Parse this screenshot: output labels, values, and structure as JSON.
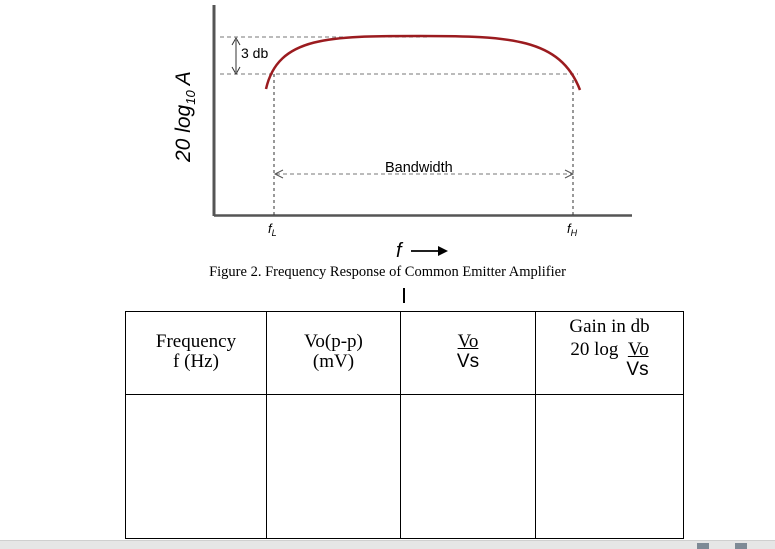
{
  "figure": {
    "ylabel_main": "20 log",
    "ylabel_sub": "10",
    "ylabel_tail": " A",
    "db_label": "3 db",
    "bandwidth_label": "Bandwidth",
    "fl_main": "f",
    "fl_sub": "L",
    "fh_main": "f",
    "fh_sub": "H",
    "xaxis_label": "f",
    "curve_color": "#9b1b1f"
  },
  "caption": "Figure 2. Frequency Response of Common Emitter Amplifier",
  "table": {
    "headers": [
      {
        "line1": "Frequency",
        "line2": "f (Hz)"
      },
      {
        "line1": "Vo(p-p)",
        "line2": "(mV)"
      },
      {
        "num": "Vo",
        "den": "Vs"
      },
      {
        "line1": "Gain in db",
        "prefix": "20 log",
        "num": "Vo",
        "den": "Vs"
      }
    ]
  }
}
